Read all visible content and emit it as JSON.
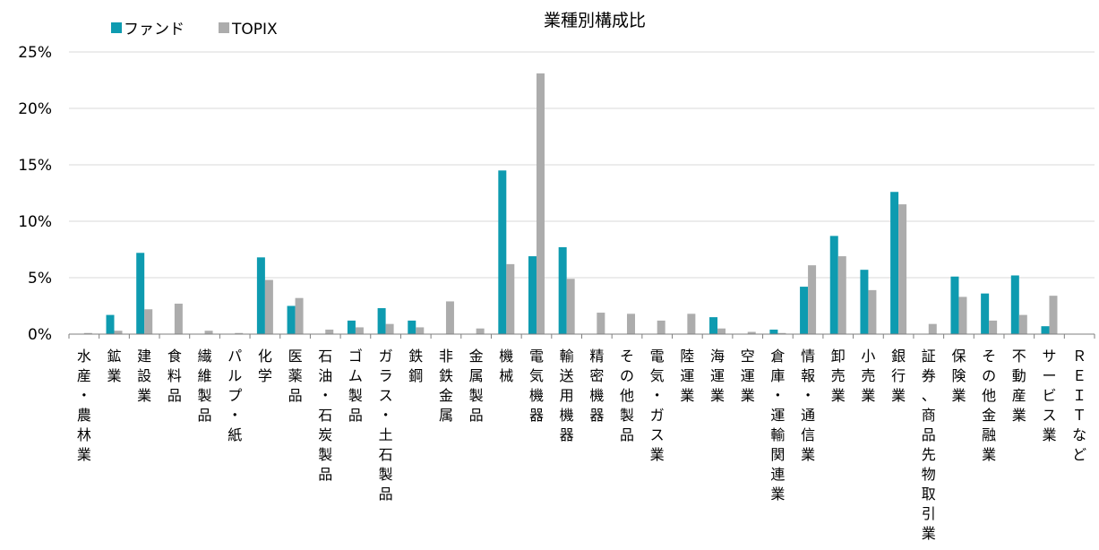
{
  "chart_data": {
    "type": "bar",
    "title": "業種別構成比",
    "xlabel": "",
    "ylabel": "",
    "ylim": [
      0,
      25
    ],
    "yticks": [
      0,
      5,
      10,
      15,
      20,
      25
    ],
    "ytick_labels": [
      "0%",
      "5%",
      "10%",
      "15%",
      "20%",
      "25%"
    ],
    "grid": true,
    "legend": "top-left",
    "categories": [
      "水産・農林業",
      "鉱業",
      "建設業",
      "食料品",
      "繊維製品",
      "パルプ・紙",
      "化学",
      "医薬品",
      "石油・石炭製品",
      "ゴム製品",
      "ガラス・土石製品",
      "鉄鋼",
      "非鉄金属",
      "金属製品",
      "機械",
      "電気機器",
      "輸送用機器",
      "精密機器",
      "その他製品",
      "電気・ガス業",
      "陸運業",
      "海運業",
      "空運業",
      "倉庫・運輸関連業",
      "情報・通信業",
      "卸売業",
      "小売業",
      "銀行業",
      "証券、商品先物取引業",
      "保険業",
      "その他金融業",
      "不動産業",
      "サービス業",
      "ＲＥＩＴなど"
    ],
    "series": [
      {
        "name": "ファンド",
        "color": "#0e9bb0",
        "values": [
          0,
          1.7,
          7.2,
          0,
          0,
          0,
          6.8,
          2.5,
          0,
          1.2,
          2.3,
          1.2,
          0,
          0,
          14.5,
          6.9,
          7.7,
          0,
          0,
          0,
          0,
          1.5,
          0,
          0.4,
          4.2,
          8.7,
          5.7,
          12.6,
          0,
          5.1,
          3.6,
          5.2,
          0.7,
          0
        ]
      },
      {
        "name": "TOPIX",
        "color": "#acacac",
        "values": [
          0.1,
          0.3,
          2.2,
          2.7,
          0.3,
          0.1,
          4.8,
          3.2,
          0.4,
          0.6,
          0.9,
          0.6,
          2.9,
          0.5,
          6.2,
          23.1,
          4.9,
          1.9,
          1.8,
          1.2,
          1.8,
          0.5,
          0.2,
          0.1,
          6.1,
          6.9,
          3.9,
          11.5,
          0.9,
          3.3,
          1.2,
          1.7,
          3.4,
          0
        ]
      }
    ]
  }
}
